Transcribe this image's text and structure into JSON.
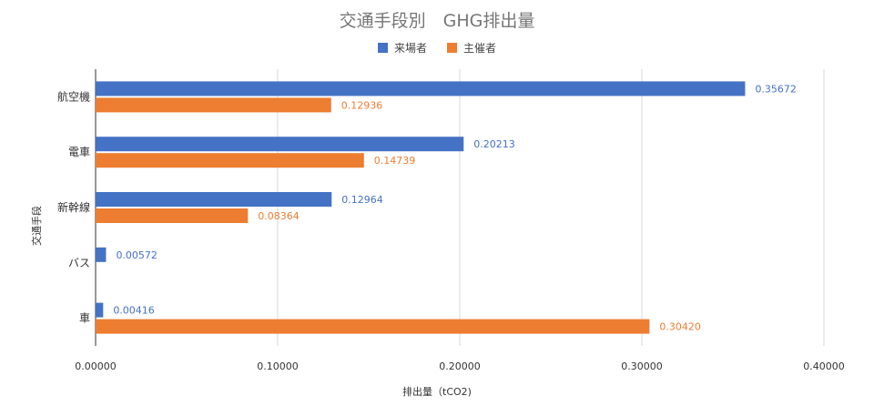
{
  "chart_data": {
    "type": "bar",
    "orientation": "horizontal",
    "title": "交通手段別　GHG排出量",
    "xlabel": "排出量（tCO2)",
    "ylabel": "交通手段",
    "categories": [
      "航空機",
      "電車",
      "新幹線",
      "バス",
      "車"
    ],
    "series": [
      {
        "name": "来場者",
        "color": "#4472c4",
        "values": [
          0.35672,
          0.20213,
          0.12964,
          0.00572,
          0.00416
        ],
        "labels": [
          "0.35672",
          "0.20213",
          "0.12964",
          "0.00572",
          "0.00416"
        ]
      },
      {
        "name": "主催者",
        "color": "#ed7d31",
        "values": [
          0.12936,
          0.14739,
          0.08364,
          null,
          0.3042
        ],
        "labels": [
          "0.12936",
          "0.14739",
          "0.08364",
          null,
          "0.30420"
        ]
      }
    ],
    "xlim": [
      0,
      0.4
    ],
    "xticks": [
      0,
      0.1,
      0.2,
      0.3,
      0.4
    ],
    "xtick_labels": [
      "0.00000",
      "0.10000",
      "0.20000",
      "0.30000",
      "0.40000"
    ],
    "grid": true,
    "legend_position": "top"
  }
}
